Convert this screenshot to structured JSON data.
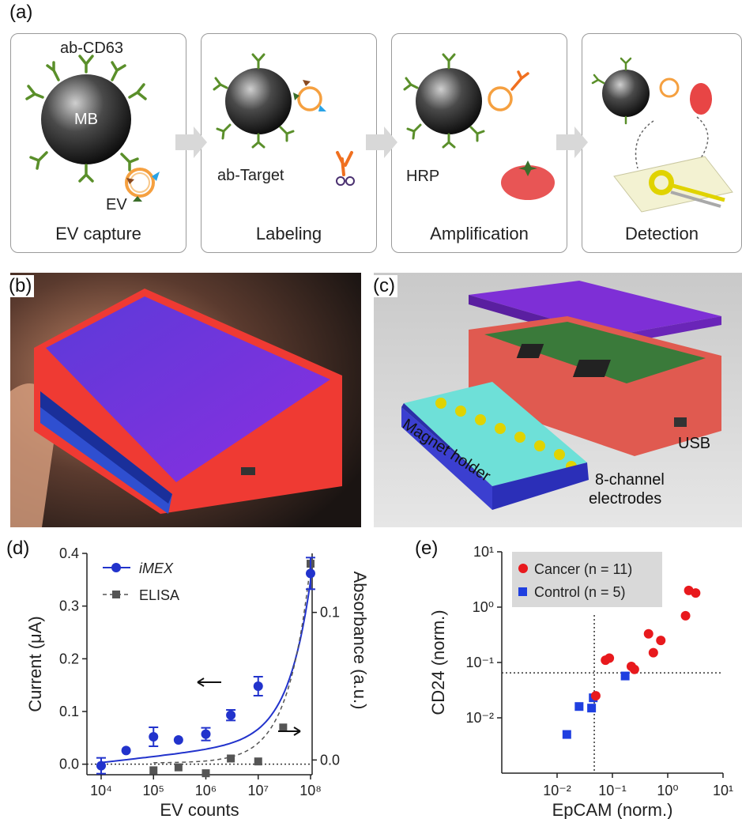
{
  "figure": {
    "panel_a": {
      "label": "(a)",
      "mb_label": "MB",
      "ab_cd63": "ab-CD63",
      "ev_label": "EV",
      "ab_target": "ab-Target",
      "hrp_label": "HRP",
      "steps": [
        "EV capture",
        "Labeling",
        "Amplification",
        "Detection"
      ]
    },
    "panel_b": {
      "label": "(b)"
    },
    "panel_c": {
      "label": "(c)",
      "usb": "USB",
      "magnet_holder": "Magnet holder",
      "electrodes_line1": "8-channel",
      "electrodes_line2": "electrodes"
    },
    "panel_d": {
      "label": "(d)"
    },
    "panel_e": {
      "label": "(e)"
    }
  },
  "colors": {
    "imex": "#2233cc",
    "elisa": "#555555",
    "cancer": "#e8191d",
    "control": "#1f3fe0",
    "device_red": "#ef3a33",
    "device_purple": "#7b2fe0"
  },
  "chart_data": [
    {
      "type": "line",
      "panel": "(d)",
      "xlabel": "EV counts",
      "ylabel": "Current (μA)",
      "ylabel_right": "Absorbance (a.u.)",
      "x_scale": "log",
      "xlim": [
        10000,
        100000000
      ],
      "ylim": [
        -0.02,
        0.4
      ],
      "ylim_right": [
        -0.01,
        0.14
      ],
      "x_ticks": [
        "10⁴",
        "10⁵",
        "10⁶",
        "10⁷",
        "10⁸"
      ],
      "x_tick_values": [
        10000,
        100000,
        1000000,
        10000000,
        100000000
      ],
      "y_ticks": [
        "0.0",
        "0.1",
        "0.2",
        "0.3",
        "0.4"
      ],
      "y_tick_values": [
        0.0,
        0.1,
        0.2,
        0.3,
        0.4
      ],
      "y_ticks_right": [
        "0.0",
        "0.1"
      ],
      "y_tick_values_right": [
        0.0,
        0.1
      ],
      "legend_position": "top-left",
      "series": [
        {
          "name": "iMEX",
          "axis": "left",
          "x": [
            10000,
            30000,
            100000,
            300000,
            1000000,
            3000000,
            10000000,
            100000000
          ],
          "y": [
            -0.003,
            0.026,
            0.052,
            0.046,
            0.057,
            0.093,
            0.148,
            0.362
          ],
          "err": [
            0.015,
            0.0,
            0.018,
            0.0,
            0.012,
            0.01,
            0.018,
            0.03
          ]
        },
        {
          "name": "ELISA",
          "axis": "right",
          "x": [
            100000,
            300000,
            1000000,
            3000000,
            10000000,
            30000000,
            100000000
          ],
          "y": [
            -0.007,
            -0.005,
            -0.009,
            0.001,
            -0.001,
            0.022,
            0.133
          ]
        }
      ],
      "annotations": [
        "arrow pointing left to current axis",
        "arrow pointing right to absorbance axis"
      ]
    },
    {
      "type": "scatter",
      "panel": "(e)",
      "xlabel": "EpCAM (norm.)",
      "ylabel": "CD24 (norm.)",
      "x_scale": "log",
      "y_scale": "log",
      "xlim": [
        0.001,
        10
      ],
      "ylim": [
        0.001,
        10
      ],
      "x_ticks": [
        "10⁻²",
        "10⁻¹",
        "10⁰",
        "10¹"
      ],
      "x_tick_values": [
        0.01,
        0.1,
        1,
        10
      ],
      "y_ticks": [
        "10⁻²",
        "10⁻¹",
        "10⁰",
        "10¹"
      ],
      "y_tick_values": [
        0.01,
        0.1,
        1,
        10
      ],
      "threshold_x": 0.047,
      "threshold_y": 0.065,
      "legend_position": "top-left",
      "series": [
        {
          "name": "Cancer (n = 11)",
          "x": [
            0.05,
            0.075,
            0.088,
            0.22,
            0.25,
            0.45,
            0.55,
            0.75,
            2.1,
            2.4,
            3.2
          ],
          "y": [
            0.025,
            0.11,
            0.12,
            0.085,
            0.075,
            0.33,
            0.15,
            0.25,
            0.7,
            2.0,
            1.8
          ]
        },
        {
          "name": "Control (n = 5)",
          "x": [
            0.015,
            0.025,
            0.042,
            0.045,
            0.17
          ],
          "y": [
            0.005,
            0.016,
            0.015,
            0.023,
            0.057
          ]
        }
      ]
    }
  ]
}
